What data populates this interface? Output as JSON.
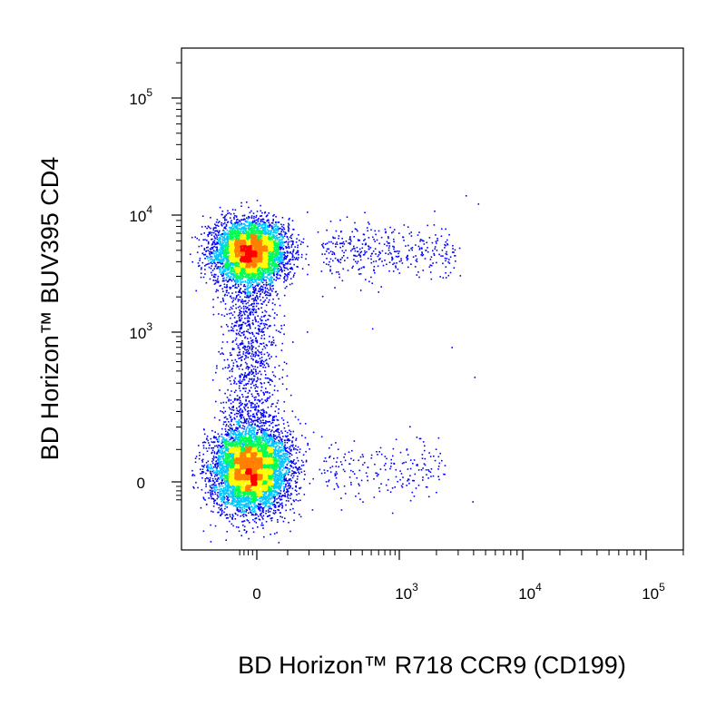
{
  "chart_data": {
    "type": "scatter",
    "plot_style": "density-colored flow cytometry dot plot (biexponential axes)",
    "xlabel": "BD Horizon™ R718 CCR9 (CD199)",
    "ylabel": "BD Horizon™ BUV395 CD4",
    "x_scale": "biexponential",
    "y_scale": "biexponential",
    "x_ticks": [
      {
        "label": "0",
        "value": 0
      },
      {
        "base": "10",
        "exp": "3",
        "value": 1000
      },
      {
        "base": "10",
        "exp": "4",
        "value": 10000
      },
      {
        "base": "10",
        "exp": "5",
        "value": 100000
      }
    ],
    "y_ticks": [
      {
        "label": "0",
        "value": 0
      },
      {
        "base": "10",
        "exp": "3",
        "value": 1000
      },
      {
        "base": "10",
        "exp": "4",
        "value": 10000
      },
      {
        "base": "10",
        "exp": "5",
        "value": 100000
      }
    ],
    "xlim": [
      -200,
      250000
    ],
    "ylim": [
      -250,
      250000
    ],
    "grid": false,
    "legend": "none",
    "density_colors": [
      "#0000ff",
      "#00c8ff",
      "#00ff50",
      "#ffff00",
      "#ff8000",
      "#ff0000"
    ],
    "populations": [
      {
        "x_center": 0,
        "y_center": 5000,
        "spread": "dense cluster",
        "peak_color": "#ff0000"
      },
      {
        "x_center": 0,
        "y_center": 0,
        "spread": "dense cluster",
        "peak_color": "#ff0000"
      },
      {
        "x_range": [
          100,
          3000
        ],
        "y_center": 5000,
        "spread": "sparse tail",
        "peak_color": "#0000ff"
      },
      {
        "x_range": [
          100,
          3000
        ],
        "y_center": 0,
        "spread": "sparse tail",
        "peak_color": "#0000ff"
      },
      {
        "x_center": 0,
        "y_range": [
          200,
          2000
        ],
        "spread": "sparse bridge",
        "peak_color": "#0000ff"
      }
    ]
  }
}
